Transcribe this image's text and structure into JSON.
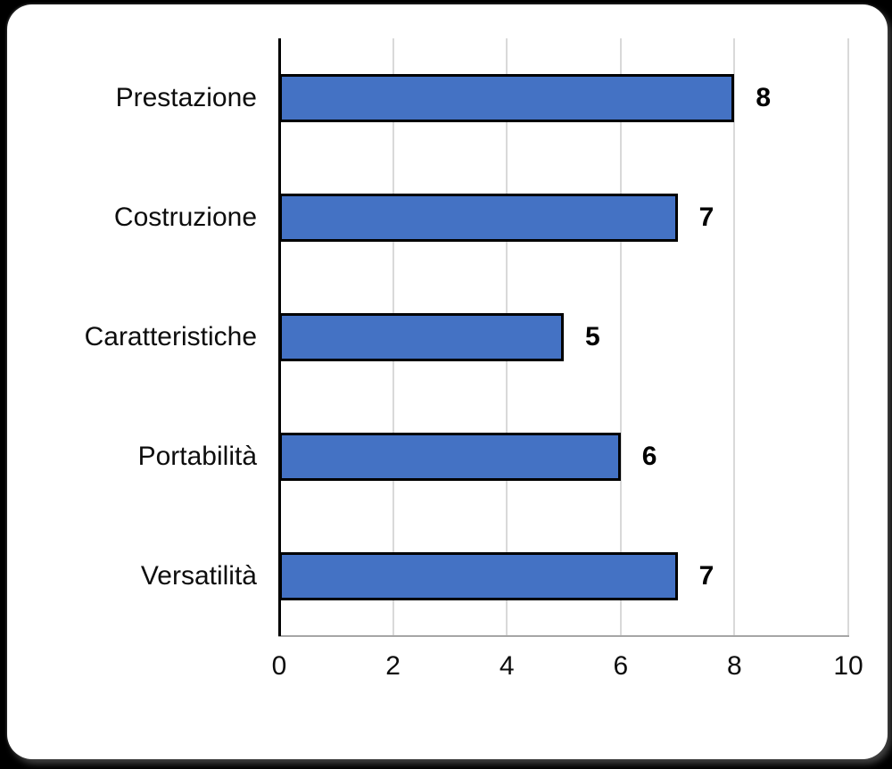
{
  "chart_data": {
    "type": "bar",
    "orientation": "horizontal",
    "title": "",
    "xlabel": "",
    "ylabel": "",
    "categories": [
      "Prestazione",
      "Costruzione",
      "Caratteristiche",
      "Portabilità",
      "Versatilità"
    ],
    "values": [
      8,
      7,
      5,
      6,
      7
    ],
    "data_labels": [
      "8",
      "7",
      "5",
      "6",
      "7"
    ],
    "xlim": [
      0,
      10
    ],
    "xticks": [
      0,
      2,
      4,
      6,
      8,
      10
    ],
    "grid": "vertical-major-only",
    "legend": "none",
    "colors": {
      "bar_fill": "#4472c4",
      "bar_border": "#000000",
      "gridline": "#d9d9d9",
      "axis_line": "#000000",
      "text": "#0d0d0d",
      "card_background": "#ffffff",
      "page_background": "#000000"
    }
  }
}
